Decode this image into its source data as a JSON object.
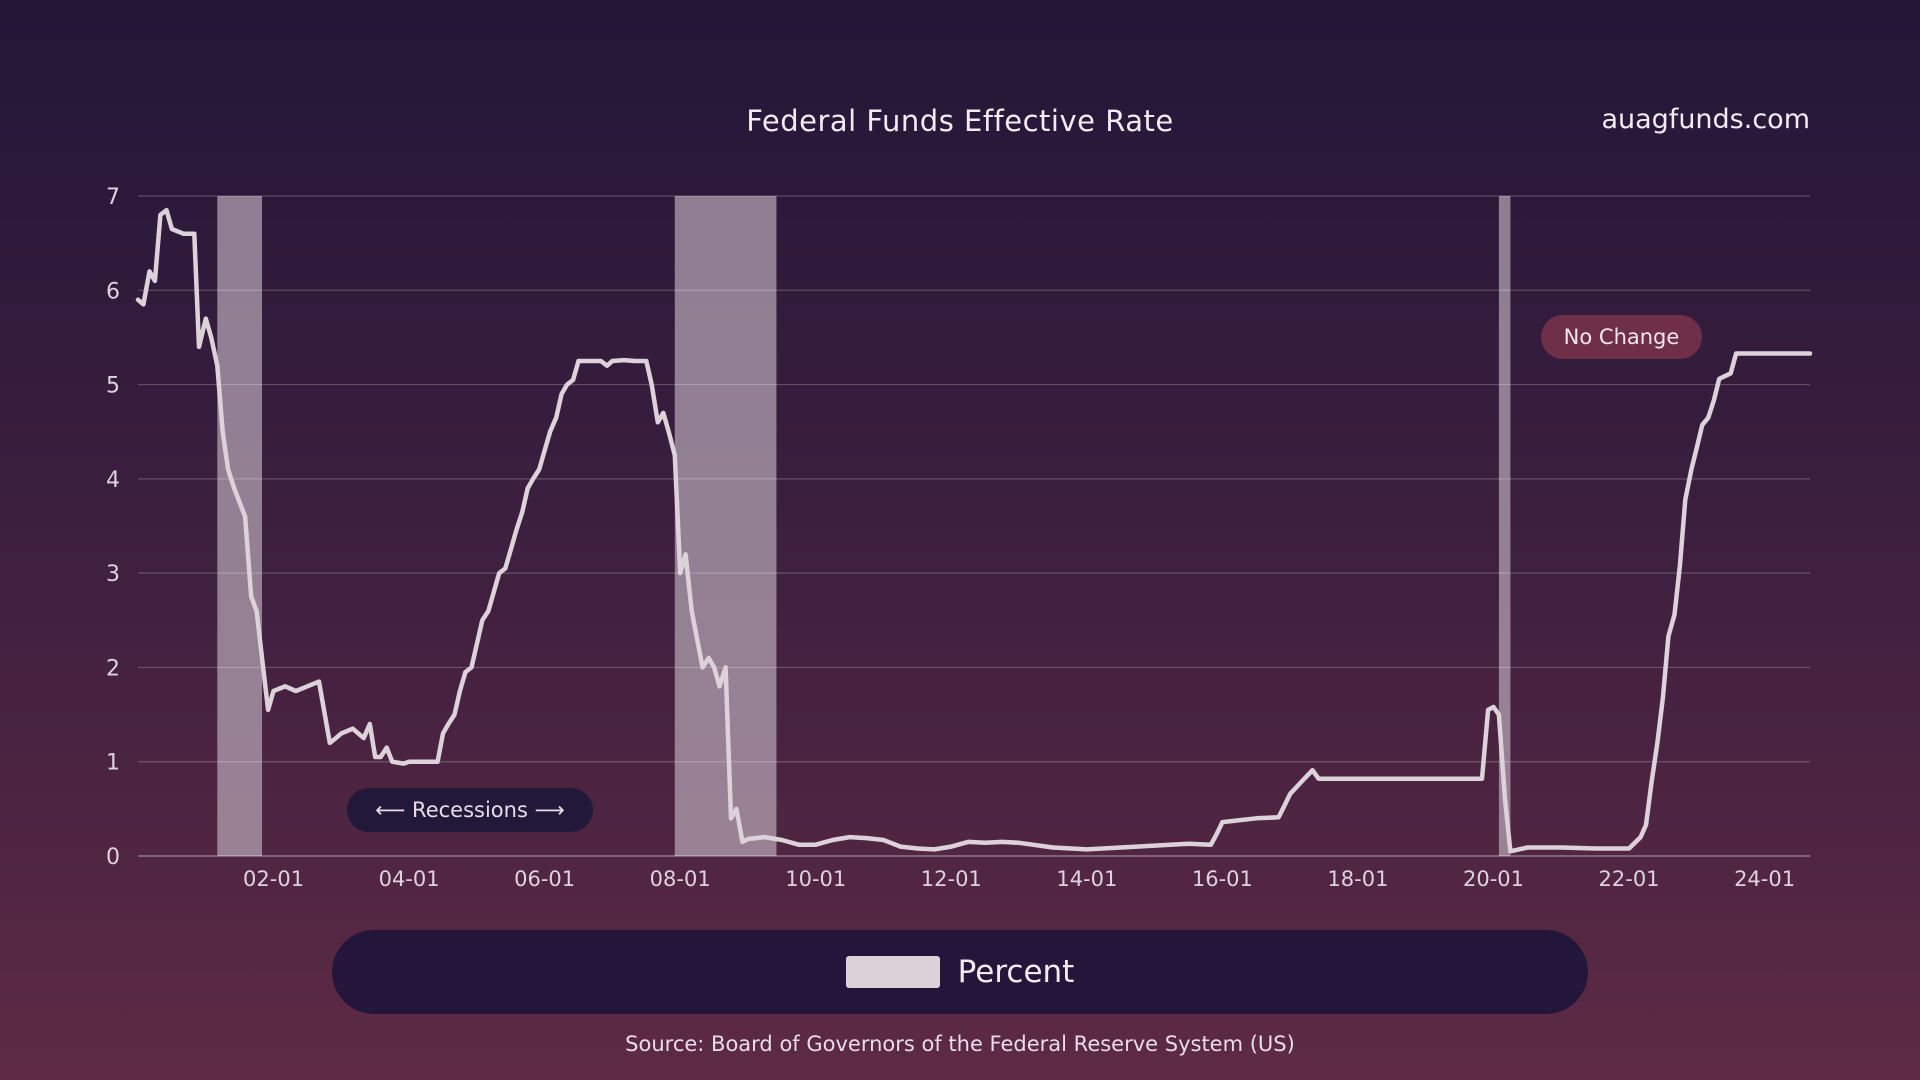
{
  "header": {
    "title": "Federal Funds Effective Rate",
    "brand": "auagfunds.com"
  },
  "annotations": {
    "recessions": "⟵ Recessions ⟶",
    "no_change": "No Change"
  },
  "legend": {
    "label": "Percent"
  },
  "source": "Source: Board of Governors of the Federal Reserve System (US)",
  "colors": {
    "line": "#ddd2da",
    "recession": "#b9aab8",
    "legend_bg": "#23163a",
    "no_change_bg": "#6f2f48"
  },
  "chart_data": {
    "type": "line",
    "title": "Federal Funds Effective Rate",
    "xlabel": "",
    "ylabel": "",
    "ylim": [
      0,
      7
    ],
    "xlim": [
      2000.0,
      2024.67
    ],
    "yticks": [
      0,
      1,
      2,
      3,
      4,
      5,
      6,
      7
    ],
    "xticks": [
      {
        "v": 2002.0,
        "label": "02-01"
      },
      {
        "v": 2004.0,
        "label": "04-01"
      },
      {
        "v": 2006.0,
        "label": "06-01"
      },
      {
        "v": 2008.0,
        "label": "08-01"
      },
      {
        "v": 2010.0,
        "label": "10-01"
      },
      {
        "v": 2012.0,
        "label": "12-01"
      },
      {
        "v": 2014.0,
        "label": "14-01"
      },
      {
        "v": 2016.0,
        "label": "16-01"
      },
      {
        "v": 2018.0,
        "label": "18-01"
      },
      {
        "v": 2020.0,
        "label": "20-01"
      },
      {
        "v": 2022.0,
        "label": "22-01"
      },
      {
        "v": 2024.0,
        "label": "24-01"
      }
    ],
    "recessions": [
      [
        2001.17,
        2001.83
      ],
      [
        2007.92,
        2009.42
      ],
      [
        2020.08,
        2020.25
      ]
    ],
    "grid": true,
    "legend": "bottom-center",
    "series": [
      {
        "name": "Percent",
        "points": [
          [
            2000.0,
            5.9
          ],
          [
            2000.08,
            5.85
          ],
          [
            2000.17,
            6.2
          ],
          [
            2000.25,
            6.1
          ],
          [
            2000.33,
            6.8
          ],
          [
            2000.42,
            6.85
          ],
          [
            2000.5,
            6.65
          ],
          [
            2000.67,
            6.6
          ],
          [
            2000.83,
            6.6
          ],
          [
            2000.9,
            5.4
          ],
          [
            2001.0,
            5.7
          ],
          [
            2001.08,
            5.5
          ],
          [
            2001.17,
            5.2
          ],
          [
            2001.25,
            4.5
          ],
          [
            2001.33,
            4.1
          ],
          [
            2001.42,
            3.9
          ],
          [
            2001.58,
            3.6
          ],
          [
            2001.67,
            2.75
          ],
          [
            2001.75,
            2.6
          ],
          [
            2001.83,
            2.1
          ],
          [
            2001.92,
            1.55
          ],
          [
            2002.0,
            1.75
          ],
          [
            2002.17,
            1.8
          ],
          [
            2002.33,
            1.75
          ],
          [
            2002.5,
            1.8
          ],
          [
            2002.67,
            1.85
          ],
          [
            2002.83,
            1.2
          ],
          [
            2002.92,
            1.25
          ],
          [
            2003.0,
            1.3
          ],
          [
            2003.17,
            1.35
          ],
          [
            2003.33,
            1.25
          ],
          [
            2003.42,
            1.4
          ],
          [
            2003.5,
            1.05
          ],
          [
            2003.58,
            1.05
          ],
          [
            2003.67,
            1.15
          ],
          [
            2003.75,
            1.0
          ],
          [
            2003.92,
            0.98
          ],
          [
            2004.0,
            1.0
          ],
          [
            2004.25,
            1.0
          ],
          [
            2004.42,
            1.0
          ],
          [
            2004.5,
            1.3
          ],
          [
            2004.58,
            1.4
          ],
          [
            2004.67,
            1.5
          ],
          [
            2004.75,
            1.75
          ],
          [
            2004.83,
            1.95
          ],
          [
            2004.92,
            2.0
          ],
          [
            2005.0,
            2.25
          ],
          [
            2005.08,
            2.5
          ],
          [
            2005.17,
            2.6
          ],
          [
            2005.25,
            2.8
          ],
          [
            2005.33,
            3.0
          ],
          [
            2005.42,
            3.05
          ],
          [
            2005.5,
            3.25
          ],
          [
            2005.58,
            3.45
          ],
          [
            2005.67,
            3.65
          ],
          [
            2005.75,
            3.9
          ],
          [
            2005.83,
            4.0
          ],
          [
            2005.92,
            4.1
          ],
          [
            2006.0,
            4.3
          ],
          [
            2006.08,
            4.5
          ],
          [
            2006.17,
            4.65
          ],
          [
            2006.25,
            4.9
          ],
          [
            2006.33,
            5.0
          ],
          [
            2006.42,
            5.05
          ],
          [
            2006.5,
            5.25
          ],
          [
            2006.67,
            5.25
          ],
          [
            2006.83,
            5.25
          ],
          [
            2006.92,
            5.2
          ],
          [
            2007.0,
            5.25
          ],
          [
            2007.17,
            5.26
          ],
          [
            2007.33,
            5.25
          ],
          [
            2007.5,
            5.25
          ],
          [
            2007.58,
            5.0
          ],
          [
            2007.67,
            4.6
          ],
          [
            2007.75,
            4.7
          ],
          [
            2007.83,
            4.5
          ],
          [
            2007.92,
            4.25
          ],
          [
            2008.0,
            3.0
          ],
          [
            2008.08,
            3.2
          ],
          [
            2008.17,
            2.6
          ],
          [
            2008.25,
            2.3
          ],
          [
            2008.33,
            2.0
          ],
          [
            2008.42,
            2.1
          ],
          [
            2008.5,
            2.0
          ],
          [
            2008.58,
            1.8
          ],
          [
            2008.67,
            2.0
          ],
          [
            2008.75,
            0.4
          ],
          [
            2008.83,
            0.5
          ],
          [
            2008.92,
            0.15
          ],
          [
            2009.0,
            0.18
          ],
          [
            2009.25,
            0.2
          ],
          [
            2009.5,
            0.17
          ],
          [
            2009.75,
            0.12
          ],
          [
            2010.0,
            0.12
          ],
          [
            2010.25,
            0.17
          ],
          [
            2010.5,
            0.2
          ],
          [
            2010.75,
            0.19
          ],
          [
            2011.0,
            0.17
          ],
          [
            2011.25,
            0.1
          ],
          [
            2011.5,
            0.08
          ],
          [
            2011.75,
            0.07
          ],
          [
            2012.0,
            0.1
          ],
          [
            2012.25,
            0.15
          ],
          [
            2012.5,
            0.14
          ],
          [
            2012.75,
            0.15
          ],
          [
            2013.0,
            0.14
          ],
          [
            2013.5,
            0.09
          ],
          [
            2014.0,
            0.07
          ],
          [
            2014.5,
            0.09
          ],
          [
            2015.0,
            0.11
          ],
          [
            2015.5,
            0.13
          ],
          [
            2015.83,
            0.12
          ],
          [
            2015.92,
            0.24
          ],
          [
            2016.0,
            0.36
          ],
          [
            2016.5,
            0.4
          ],
          [
            2016.83,
            0.41
          ],
          [
            2016.92,
            0.54
          ],
          [
            2017.0,
            0.66
          ],
          [
            2017.17,
            0.79
          ],
          [
            2017.33,
            0.91
          ],
          [
            2017.42,
            0.82
          ],
          [
            2017.67,
            0.82
          ],
          [
            2018.0,
            0.82
          ],
          [
            2018.5,
            0.82
          ],
          [
            2019.0,
            0.82
          ],
          [
            2019.5,
            0.82
          ],
          [
            2019.83,
            0.82
          ],
          [
            2019.92,
            1.55
          ],
          [
            2020.0,
            1.58
          ],
          [
            2020.08,
            1.5
          ],
          [
            2020.17,
            0.6
          ],
          [
            2020.25,
            0.05
          ],
          [
            2020.5,
            0.09
          ],
          [
            2020.75,
            0.09
          ],
          [
            2021.0,
            0.09
          ],
          [
            2021.5,
            0.08
          ],
          [
            2021.75,
            0.08
          ],
          [
            2022.0,
            0.08
          ],
          [
            2022.17,
            0.2
          ],
          [
            2022.25,
            0.33
          ],
          [
            2022.33,
            0.77
          ],
          [
            2022.42,
            1.21
          ],
          [
            2022.5,
            1.68
          ],
          [
            2022.58,
            2.33
          ],
          [
            2022.67,
            2.56
          ],
          [
            2022.75,
            3.08
          ],
          [
            2022.83,
            3.78
          ],
          [
            2022.92,
            4.1
          ],
          [
            2023.0,
            4.33
          ],
          [
            2023.08,
            4.57
          ],
          [
            2023.17,
            4.65
          ],
          [
            2023.25,
            4.83
          ],
          [
            2023.33,
            5.06
          ],
          [
            2023.5,
            5.12
          ],
          [
            2023.58,
            5.33
          ],
          [
            2023.75,
            5.33
          ],
          [
            2024.0,
            5.33
          ],
          [
            2024.25,
            5.33
          ],
          [
            2024.5,
            5.33
          ],
          [
            2024.67,
            5.33
          ]
        ]
      }
    ]
  }
}
